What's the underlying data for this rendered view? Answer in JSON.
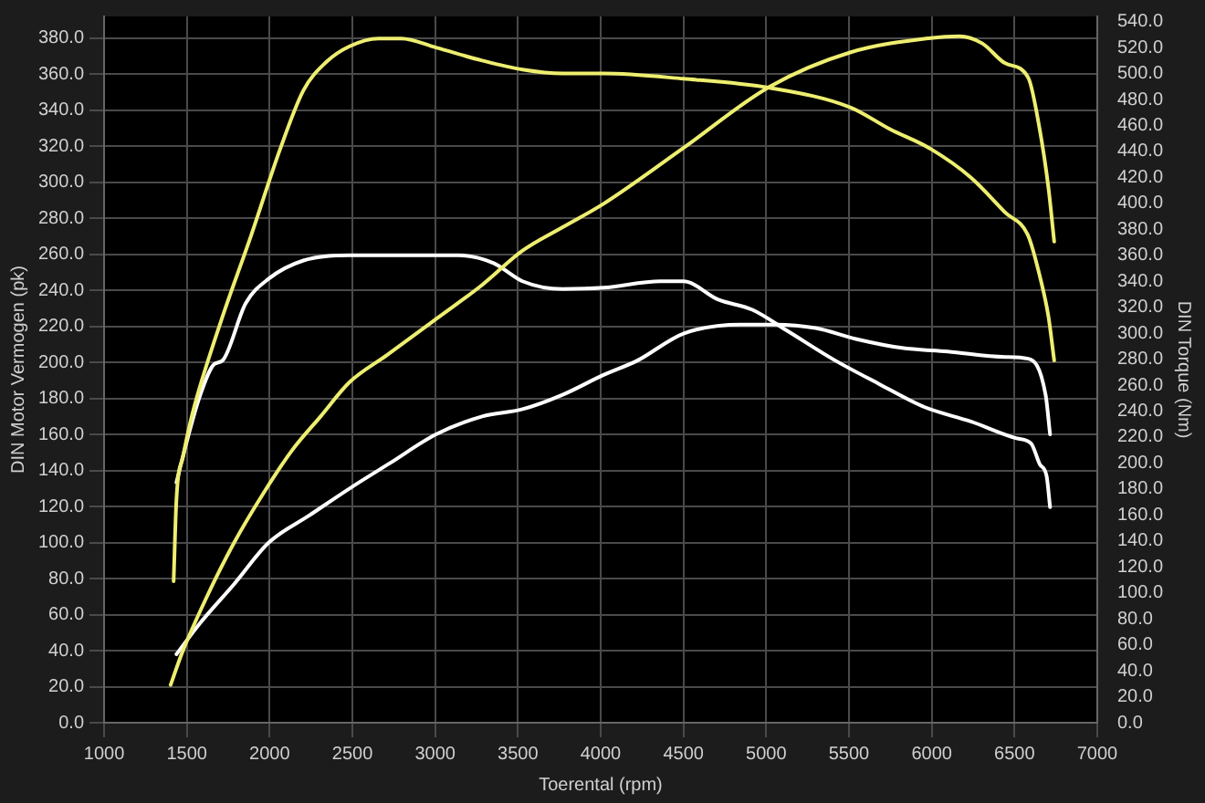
{
  "chart_data": {
    "type": "line",
    "xlabel": "Toerental (rpm)",
    "ylabel": "DIN Motor Vermogen (pk)",
    "y2label": "DIN Torque (Nm)",
    "xlim": [
      1000,
      7000
    ],
    "xticks": [
      1000,
      1500,
      2000,
      2500,
      3000,
      3500,
      4000,
      4500,
      5000,
      5500,
      6000,
      6500,
      7000
    ],
    "ylim": [
      0,
      392
    ],
    "yticks": [
      {
        "value": 0,
        "label": "0.0"
      },
      {
        "value": 20,
        "label": "20.0"
      },
      {
        "value": 40,
        "label": "40.0"
      },
      {
        "value": 60,
        "label": "60.0"
      },
      {
        "value": 80,
        "label": "80.0"
      },
      {
        "value": 100,
        "label": "100.0"
      },
      {
        "value": 120,
        "label": "120.0"
      },
      {
        "value": 140,
        "label": "140.0"
      },
      {
        "value": 160,
        "label": "160.0"
      },
      {
        "value": 180,
        "label": "180.0"
      },
      {
        "value": 200,
        "label": "200.0"
      },
      {
        "value": 220,
        "label": "220.0"
      },
      {
        "value": 240,
        "label": "240.0"
      },
      {
        "value": 260,
        "label": "260.0"
      },
      {
        "value": 280,
        "label": "280.0"
      },
      {
        "value": 300,
        "label": "300.0"
      },
      {
        "value": 320,
        "label": "320.0"
      },
      {
        "value": 340,
        "label": "340.0"
      },
      {
        "value": 360,
        "label": "360.0"
      },
      {
        "value": 380,
        "label": "380.0"
      }
    ],
    "y2lim": [
      0,
      544
    ],
    "y2ticks": [
      {
        "value": 0,
        "label": "0.0"
      },
      {
        "value": 20,
        "label": "20.0"
      },
      {
        "value": 40,
        "label": "40.0"
      },
      {
        "value": 60,
        "label": "60.0"
      },
      {
        "value": 80,
        "label": "80.0"
      },
      {
        "value": 100,
        "label": "100.0"
      },
      {
        "value": 120,
        "label": "120.0"
      },
      {
        "value": 140,
        "label": "140.0"
      },
      {
        "value": 160,
        "label": "160.0"
      },
      {
        "value": 180,
        "label": "180.0"
      },
      {
        "value": 200,
        "label": "200.0"
      },
      {
        "value": 220,
        "label": "220.0"
      },
      {
        "value": 240,
        "label": "240.0"
      },
      {
        "value": 260,
        "label": "260.0"
      },
      {
        "value": 280,
        "label": "280.0"
      },
      {
        "value": 300,
        "label": "300.0"
      },
      {
        "value": 320,
        "label": "320.0"
      },
      {
        "value": 340,
        "label": "340.0"
      },
      {
        "value": 360,
        "label": "360.0"
      },
      {
        "value": 380,
        "label": "380.0"
      },
      {
        "value": 400,
        "label": "400.0"
      },
      {
        "value": 420,
        "label": "420.0"
      },
      {
        "value": 440,
        "label": "440.0"
      },
      {
        "value": 460,
        "label": "460.0"
      },
      {
        "value": 480,
        "label": "480.0"
      },
      {
        "value": 500,
        "label": "500.0"
      },
      {
        "value": 520,
        "label": "520.0"
      },
      {
        "value": 540,
        "label": "540.0"
      }
    ],
    "grid": true,
    "legend": false,
    "marker": "none",
    "line_style": "solid",
    "series": [
      {
        "color": "#eeee70",
        "axis": "y",
        "x": [
          1402,
          1472,
          1611,
          1786,
          1960,
          2134,
          2308,
          2483,
          2709,
          3005,
          3284,
          3528,
          3770,
          4017,
          4500,
          5021,
          5507,
          5993,
          6167,
          6306,
          6444,
          6583,
          6653,
          6705,
          6740
        ],
        "values": [
          21,
          39,
          68,
          100,
          127,
          151,
          170,
          189,
          204,
          224,
          243,
          262,
          275,
          288,
          319,
          353,
          372,
          380,
          381,
          377,
          366,
          358,
          329,
          297,
          267
        ]
      },
      {
        "color": "#eeee70",
        "axis": "y2",
        "x": [
          1420,
          1437,
          1479,
          1524,
          1577,
          1716,
          1890,
          2064,
          2204,
          2343,
          2483,
          2657,
          2796,
          3005,
          3284,
          3528,
          3770,
          4017,
          4500,
          5021,
          5507,
          5750,
          5993,
          6236,
          6444,
          6583,
          6653,
          6705,
          6740
        ],
        "values": [
          109,
          172,
          206,
          233,
          258,
          313,
          376,
          442,
          487,
          509,
          521,
          527,
          527,
          520,
          510,
          503,
          500,
          500,
          496,
          489,
          474,
          457,
          442,
          420,
          393,
          375,
          344,
          313,
          279
        ]
      },
      {
        "color": "#ffffff",
        "axis": "y",
        "x": [
          1437,
          1577,
          1786,
          1995,
          2239,
          2483,
          2726,
          3005,
          3284,
          3528,
          3770,
          4017,
          4222,
          4500,
          4847,
          5056,
          5299,
          5542,
          5820,
          6097,
          6444,
          6583,
          6688,
          6715
        ],
        "values": [
          38,
          55,
          77,
          100,
          115,
          130,
          144,
          160,
          170,
          174,
          182,
          193,
          201,
          216,
          221,
          221,
          219,
          213,
          208,
          206,
          203,
          202,
          182,
          160
        ]
      },
      {
        "color": "#ffffff",
        "axis": "y2",
        "x": [
          1437,
          1490,
          1577,
          1664,
          1716,
          1855,
          1995,
          2204,
          2483,
          2831,
          3144,
          3353,
          3528,
          3770,
          4017,
          4361,
          4500,
          4708,
          4917,
          5125,
          5403,
          5681,
          5958,
          6236,
          6514,
          6601,
          6653,
          6694,
          6715
        ],
        "values": [
          185,
          212,
          251,
          276,
          279,
          323,
          342,
          356,
          360,
          360,
          360,
          354,
          340,
          334,
          335,
          340,
          340,
          326,
          318,
          302,
          280,
          261,
          243,
          232,
          219,
          215,
          199,
          190,
          166
        ]
      }
    ]
  }
}
